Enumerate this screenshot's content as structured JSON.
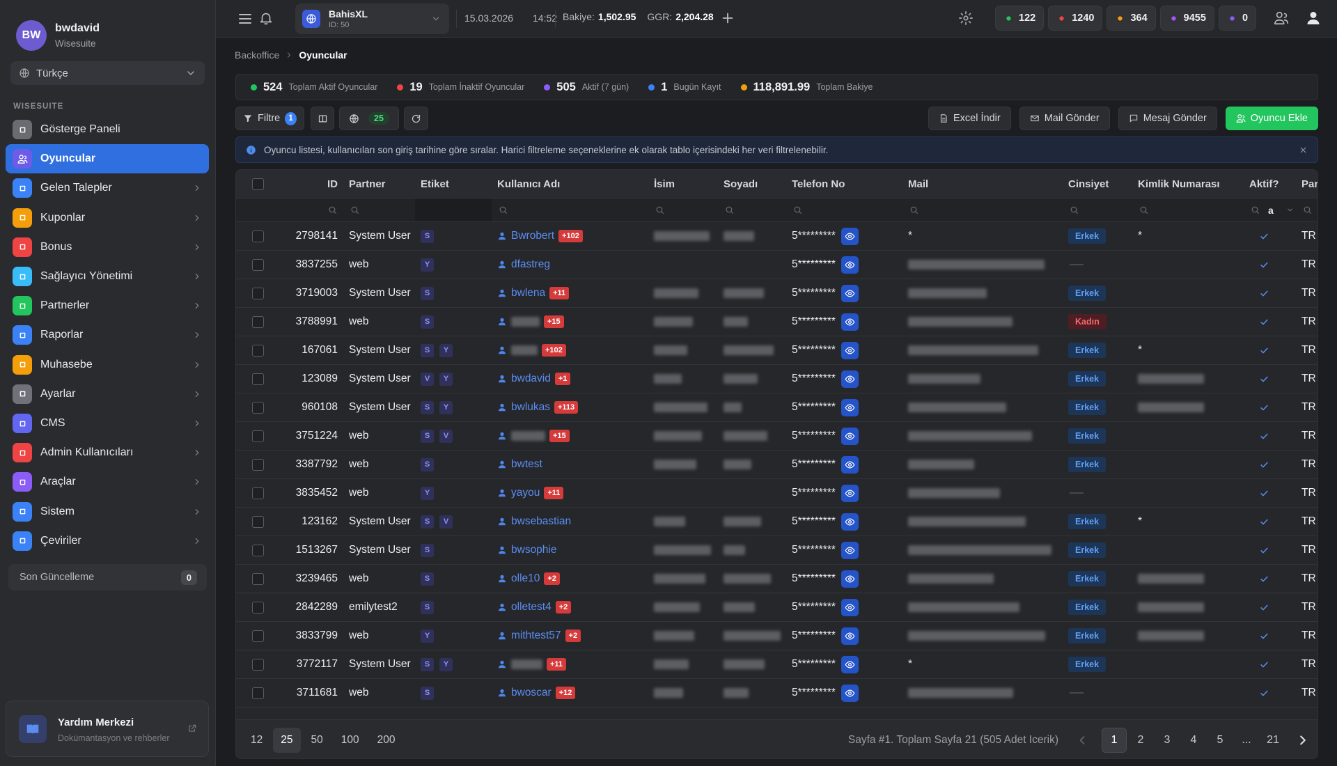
{
  "user": {
    "initials": "BW",
    "name": "bwdavid",
    "org": "Wisesuite"
  },
  "language": "Türkçe",
  "nav_section": "WISESUITE",
  "nav": [
    "Gösterge Paneli",
    "Oyuncular",
    "Gelen Talepler",
    "Kuponlar",
    "Bonus",
    "Sağlayıcı Yönetimi",
    "Partnerler",
    "Raporlar",
    "Muhasebe",
    "Ayarlar",
    "CMS",
    "Admin Kullanıcıları",
    "Araçlar",
    "Sistem",
    "Çeviriler"
  ],
  "last_update": {
    "label": "Son Güncelleme",
    "count": 0
  },
  "help": {
    "title": "Yardım Merkezi",
    "subtitle": "Dokümantasyon ve rehberler"
  },
  "topbar": {
    "site": "BahisXL",
    "site_id": "ID: 50",
    "date": "15.03.2026",
    "time": "14:52",
    "balance_label": "Bakiye:",
    "balance": "1,502.95",
    "ggr_label": "GGR:",
    "ggr": "2,204.28",
    "counters": [
      122,
      1240,
      364,
      9455,
      0
    ]
  },
  "breadcrumb": [
    "Backoffice",
    "Oyuncular"
  ],
  "stats": [
    {
      "value": 524,
      "label": "Toplam Aktif Oyuncular"
    },
    {
      "value": 19,
      "label": "Toplam İnaktif Oyuncular"
    },
    {
      "value": 505,
      "label": "Aktif (7 gün)"
    },
    {
      "value": 1,
      "label": "Bugün Kayıt"
    },
    {
      "value": "118,891.99",
      "label": "Toplam Bakiye"
    }
  ],
  "toolbar": {
    "filter": "Filtre",
    "filter_count": 1,
    "page_size": 25,
    "buttons": [
      "Excel İndir",
      "Mail Gönder",
      "Mesaj Gönder",
      "Oyuncu Ekle"
    ]
  },
  "info": "Oyuncu listesi, kullanıcıları son giriş tarihine göre sıralar. Harici filtreleme seçeneklerine ek olarak tablo içerisindeki her veri filtrelenebilir.",
  "table": {
    "columns": [
      "ID",
      "Partner",
      "Etiket",
      "Kullanıcı Adı",
      "İsim",
      "Soyadı",
      "Telefon No",
      "Mail",
      "Cinsiyet",
      "Kimlik Numarası",
      "Aktif?",
      "Par"
    ],
    "aktif_filter": "a",
    "rows": [
      {
        "id": 2798141,
        "partner": "System User",
        "tags": [
          "S"
        ],
        "username": "Bwrobert",
        "badge": "+102",
        "phone": "5*********",
        "mail": "*",
        "gender": "Erkek",
        "kimlik": "*",
        "currency": "TR"
      },
      {
        "id": 3837255,
        "partner": "web",
        "tags": [
          "Y"
        ],
        "username": "dfastreg",
        "badge": null,
        "phone": "5*********",
        "mail": null,
        "gender": null,
        "kimlik": null,
        "currency": "TR"
      },
      {
        "id": 3719003,
        "partner": "System User",
        "tags": [
          "S"
        ],
        "username": "bwlena",
        "badge": "+11",
        "phone": "5*********",
        "mail": null,
        "gender": "Erkek",
        "kimlik": null,
        "currency": "TR"
      },
      {
        "id": 3788991,
        "partner": "web",
        "tags": [
          "S"
        ],
        "username": null,
        "badge": "+15",
        "phone": "5*********",
        "mail": null,
        "gender": "Kadın",
        "kimlik": null,
        "currency": "TR"
      },
      {
        "id": 167061,
        "partner": "System User",
        "tags": [
          "S",
          "Y"
        ],
        "username": null,
        "badge": "+102",
        "phone": "5*********",
        "mail": null,
        "gender": "Erkek",
        "kimlik": "*",
        "currency": "TR"
      },
      {
        "id": 123089,
        "partner": "System User",
        "tags": [
          "V",
          "Y"
        ],
        "username": "bwdavid",
        "badge": "+1",
        "phone": "5*********",
        "mail": null,
        "gender": "Erkek",
        "kimlik": null,
        "currency": "TR"
      },
      {
        "id": 960108,
        "partner": "System User",
        "tags": [
          "S",
          "Y"
        ],
        "username": "bwlukas",
        "badge": "+113",
        "phone": "5*********",
        "mail": null,
        "gender": "Erkek",
        "kimlik": null,
        "currency": "TR"
      },
      {
        "id": 3751224,
        "partner": "web",
        "tags": [
          "S",
          "V"
        ],
        "username": null,
        "badge": "+15",
        "phone": "5*********",
        "mail": null,
        "gender": "Erkek",
        "kimlik": null,
        "currency": "TR"
      },
      {
        "id": 3387792,
        "partner": "web",
        "tags": [
          "S"
        ],
        "username": "bwtest",
        "badge": null,
        "phone": "5*********",
        "mail": null,
        "gender": "Erkek",
        "kimlik": null,
        "currency": "TR"
      },
      {
        "id": 3835452,
        "partner": "web",
        "tags": [
          "Y"
        ],
        "username": "yayou",
        "badge": "+11",
        "phone": "5*********",
        "mail": null,
        "gender": null,
        "kimlik": null,
        "currency": "TR"
      },
      {
        "id": 123162,
        "partner": "System User",
        "tags": [
          "S",
          "V"
        ],
        "username": "bwsebastian",
        "badge": null,
        "phone": "5*********",
        "mail": null,
        "gender": "Erkek",
        "kimlik": "*",
        "currency": "TR"
      },
      {
        "id": 1513267,
        "partner": "System User",
        "tags": [
          "S"
        ],
        "username": "bwsophie",
        "badge": null,
        "phone": "5*********",
        "mail": null,
        "gender": "Erkek",
        "kimlik": null,
        "currency": "TR"
      },
      {
        "id": 3239465,
        "partner": "web",
        "tags": [
          "S"
        ],
        "username": "olle10",
        "badge": "+2",
        "phone": "5*********",
        "mail": null,
        "gender": "Erkek",
        "kimlik": null,
        "currency": "TR"
      },
      {
        "id": 2842289,
        "partner": "emilytest2",
        "tags": [
          "S"
        ],
        "username": "olletest4",
        "badge": "+2",
        "phone": "5*********",
        "mail": null,
        "gender": "Erkek",
        "kimlik": null,
        "currency": "TR"
      },
      {
        "id": 3833799,
        "partner": "web",
        "tags": [
          "Y"
        ],
        "username": "mithtest57",
        "badge": "+2",
        "phone": "5*********",
        "mail": null,
        "gender": "Erkek",
        "kimlik": null,
        "currency": "TR"
      },
      {
        "id": 3772117,
        "partner": "System User",
        "tags": [
          "S",
          "Y"
        ],
        "username": null,
        "badge": "+11",
        "phone": "5*********",
        "mail": "*",
        "gender": "Erkek",
        "kimlik": null,
        "currency": "TR"
      },
      {
        "id": 3711681,
        "partner": "web",
        "tags": [
          "S"
        ],
        "username": "bwoscar",
        "badge": "+12",
        "phone": "5*********",
        "mail": null,
        "gender": null,
        "kimlik": null,
        "currency": "TR"
      }
    ]
  },
  "pagination": {
    "sizes": [
      12,
      25,
      50,
      100,
      200
    ],
    "summary": "Sayfa #1. Toplam Sayfa 21 (505 Adet Icerik)",
    "pages": [
      1,
      2,
      3,
      4,
      5,
      "...",
      21
    ]
  }
}
